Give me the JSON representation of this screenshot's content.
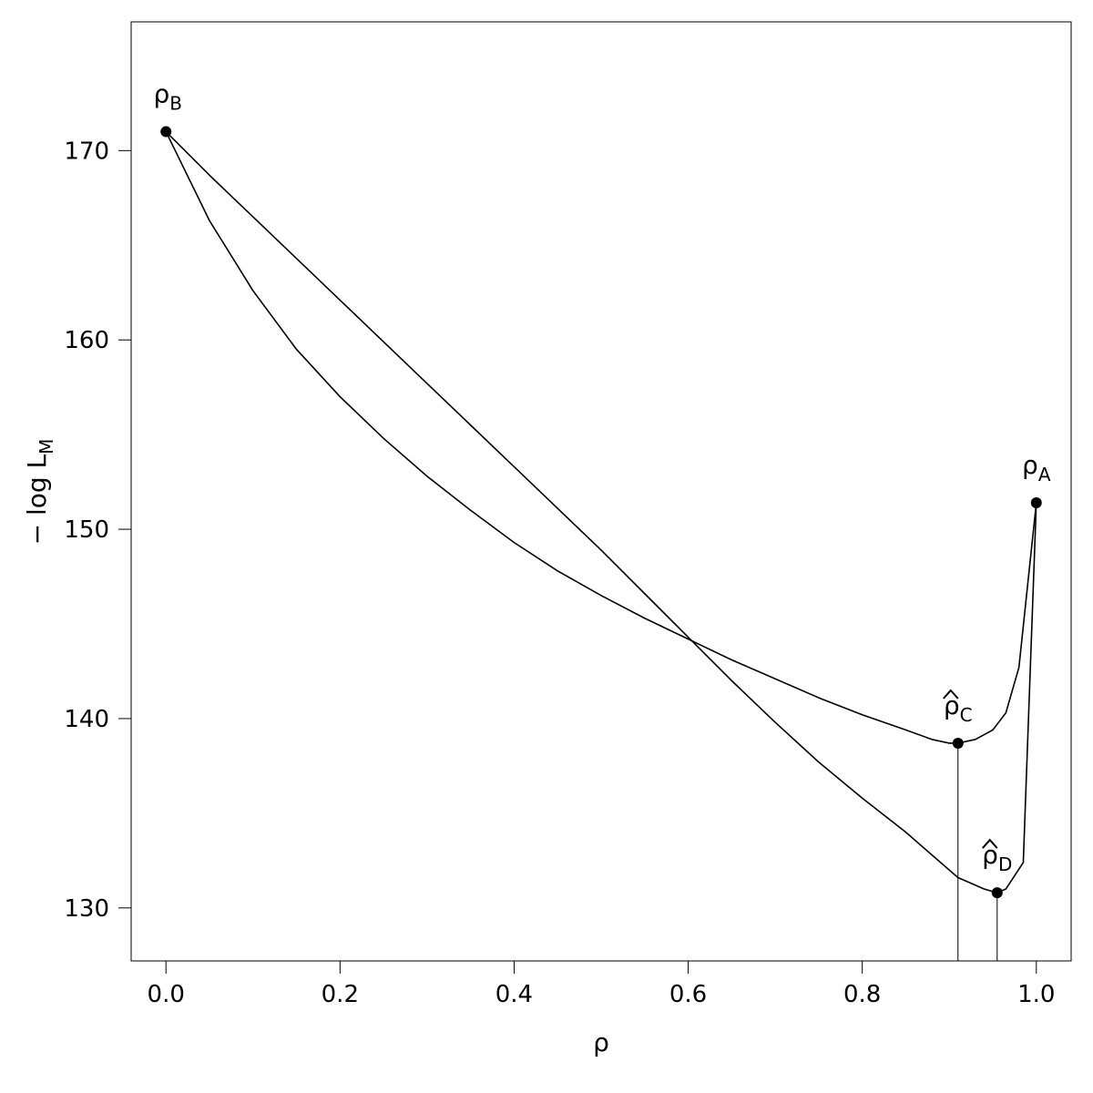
{
  "chart_data": {
    "type": "line",
    "xlabel": "ρ",
    "ylabel": {
      "main": "− log L",
      "sub": "M"
    },
    "xlim": [
      -0.04,
      1.04
    ],
    "ylim": [
      127.2,
      176.8
    ],
    "x_ticks": [
      0.0,
      0.2,
      0.4,
      0.6,
      0.8,
      1.0
    ],
    "x_tick_labels": [
      "0.0",
      "0.2",
      "0.4",
      "0.6",
      "0.8",
      "1.0"
    ],
    "y_ticks": [
      130,
      140,
      150,
      160,
      170
    ],
    "y_tick_labels": [
      "130",
      "140",
      "150",
      "160",
      "170"
    ],
    "grid": false,
    "series": [
      {
        "x": [
          0.0,
          0.05,
          0.1,
          0.15,
          0.2,
          0.25,
          0.3,
          0.35,
          0.4,
          0.45,
          0.5,
          0.55,
          0.6,
          0.65,
          0.7,
          0.75,
          0.8,
          0.85,
          0.88,
          0.9,
          0.91,
          0.93,
          0.95,
          0.965,
          0.98,
          1.0
        ],
        "y": [
          171.0,
          166.3,
          162.6,
          159.5,
          157.0,
          154.8,
          152.8,
          151.0,
          149.3,
          147.8,
          146.5,
          145.3,
          144.2,
          143.1,
          142.1,
          141.1,
          140.2,
          139.4,
          138.9,
          138.7,
          138.7,
          138.9,
          139.4,
          140.3,
          142.7,
          151.4
        ]
      },
      {
        "x": [
          0.0,
          0.05,
          0.1,
          0.15,
          0.2,
          0.25,
          0.3,
          0.35,
          0.4,
          0.45,
          0.5,
          0.55,
          0.6,
          0.65,
          0.7,
          0.75,
          0.8,
          0.85,
          0.88,
          0.91,
          0.94,
          0.955,
          0.965,
          0.985,
          1.0
        ],
        "y": [
          171.0,
          168.7,
          166.5,
          164.3,
          162.1,
          159.9,
          157.7,
          155.5,
          153.3,
          151.1,
          148.9,
          146.6,
          144.3,
          142.0,
          139.8,
          137.7,
          135.8,
          134.0,
          132.8,
          131.6,
          131.0,
          130.8,
          131.0,
          132.4,
          151.4
        ]
      }
    ],
    "drop_lines": [
      {
        "x": 0.91,
        "y_top": 138.7
      },
      {
        "x": 0.955,
        "y_top": 130.8
      }
    ],
    "points": [
      {
        "x": 0.0,
        "y": 171.0,
        "label": "ρ",
        "sub": "B",
        "hat": false
      },
      {
        "x": 1.0,
        "y": 151.4,
        "label": "ρ",
        "sub": "A",
        "hat": false
      },
      {
        "x": 0.91,
        "y": 138.7,
        "label": "ρ",
        "sub": "C",
        "hat": true
      },
      {
        "x": 0.955,
        "y": 130.8,
        "label": "ρ",
        "sub": "D",
        "hat": true
      }
    ]
  }
}
